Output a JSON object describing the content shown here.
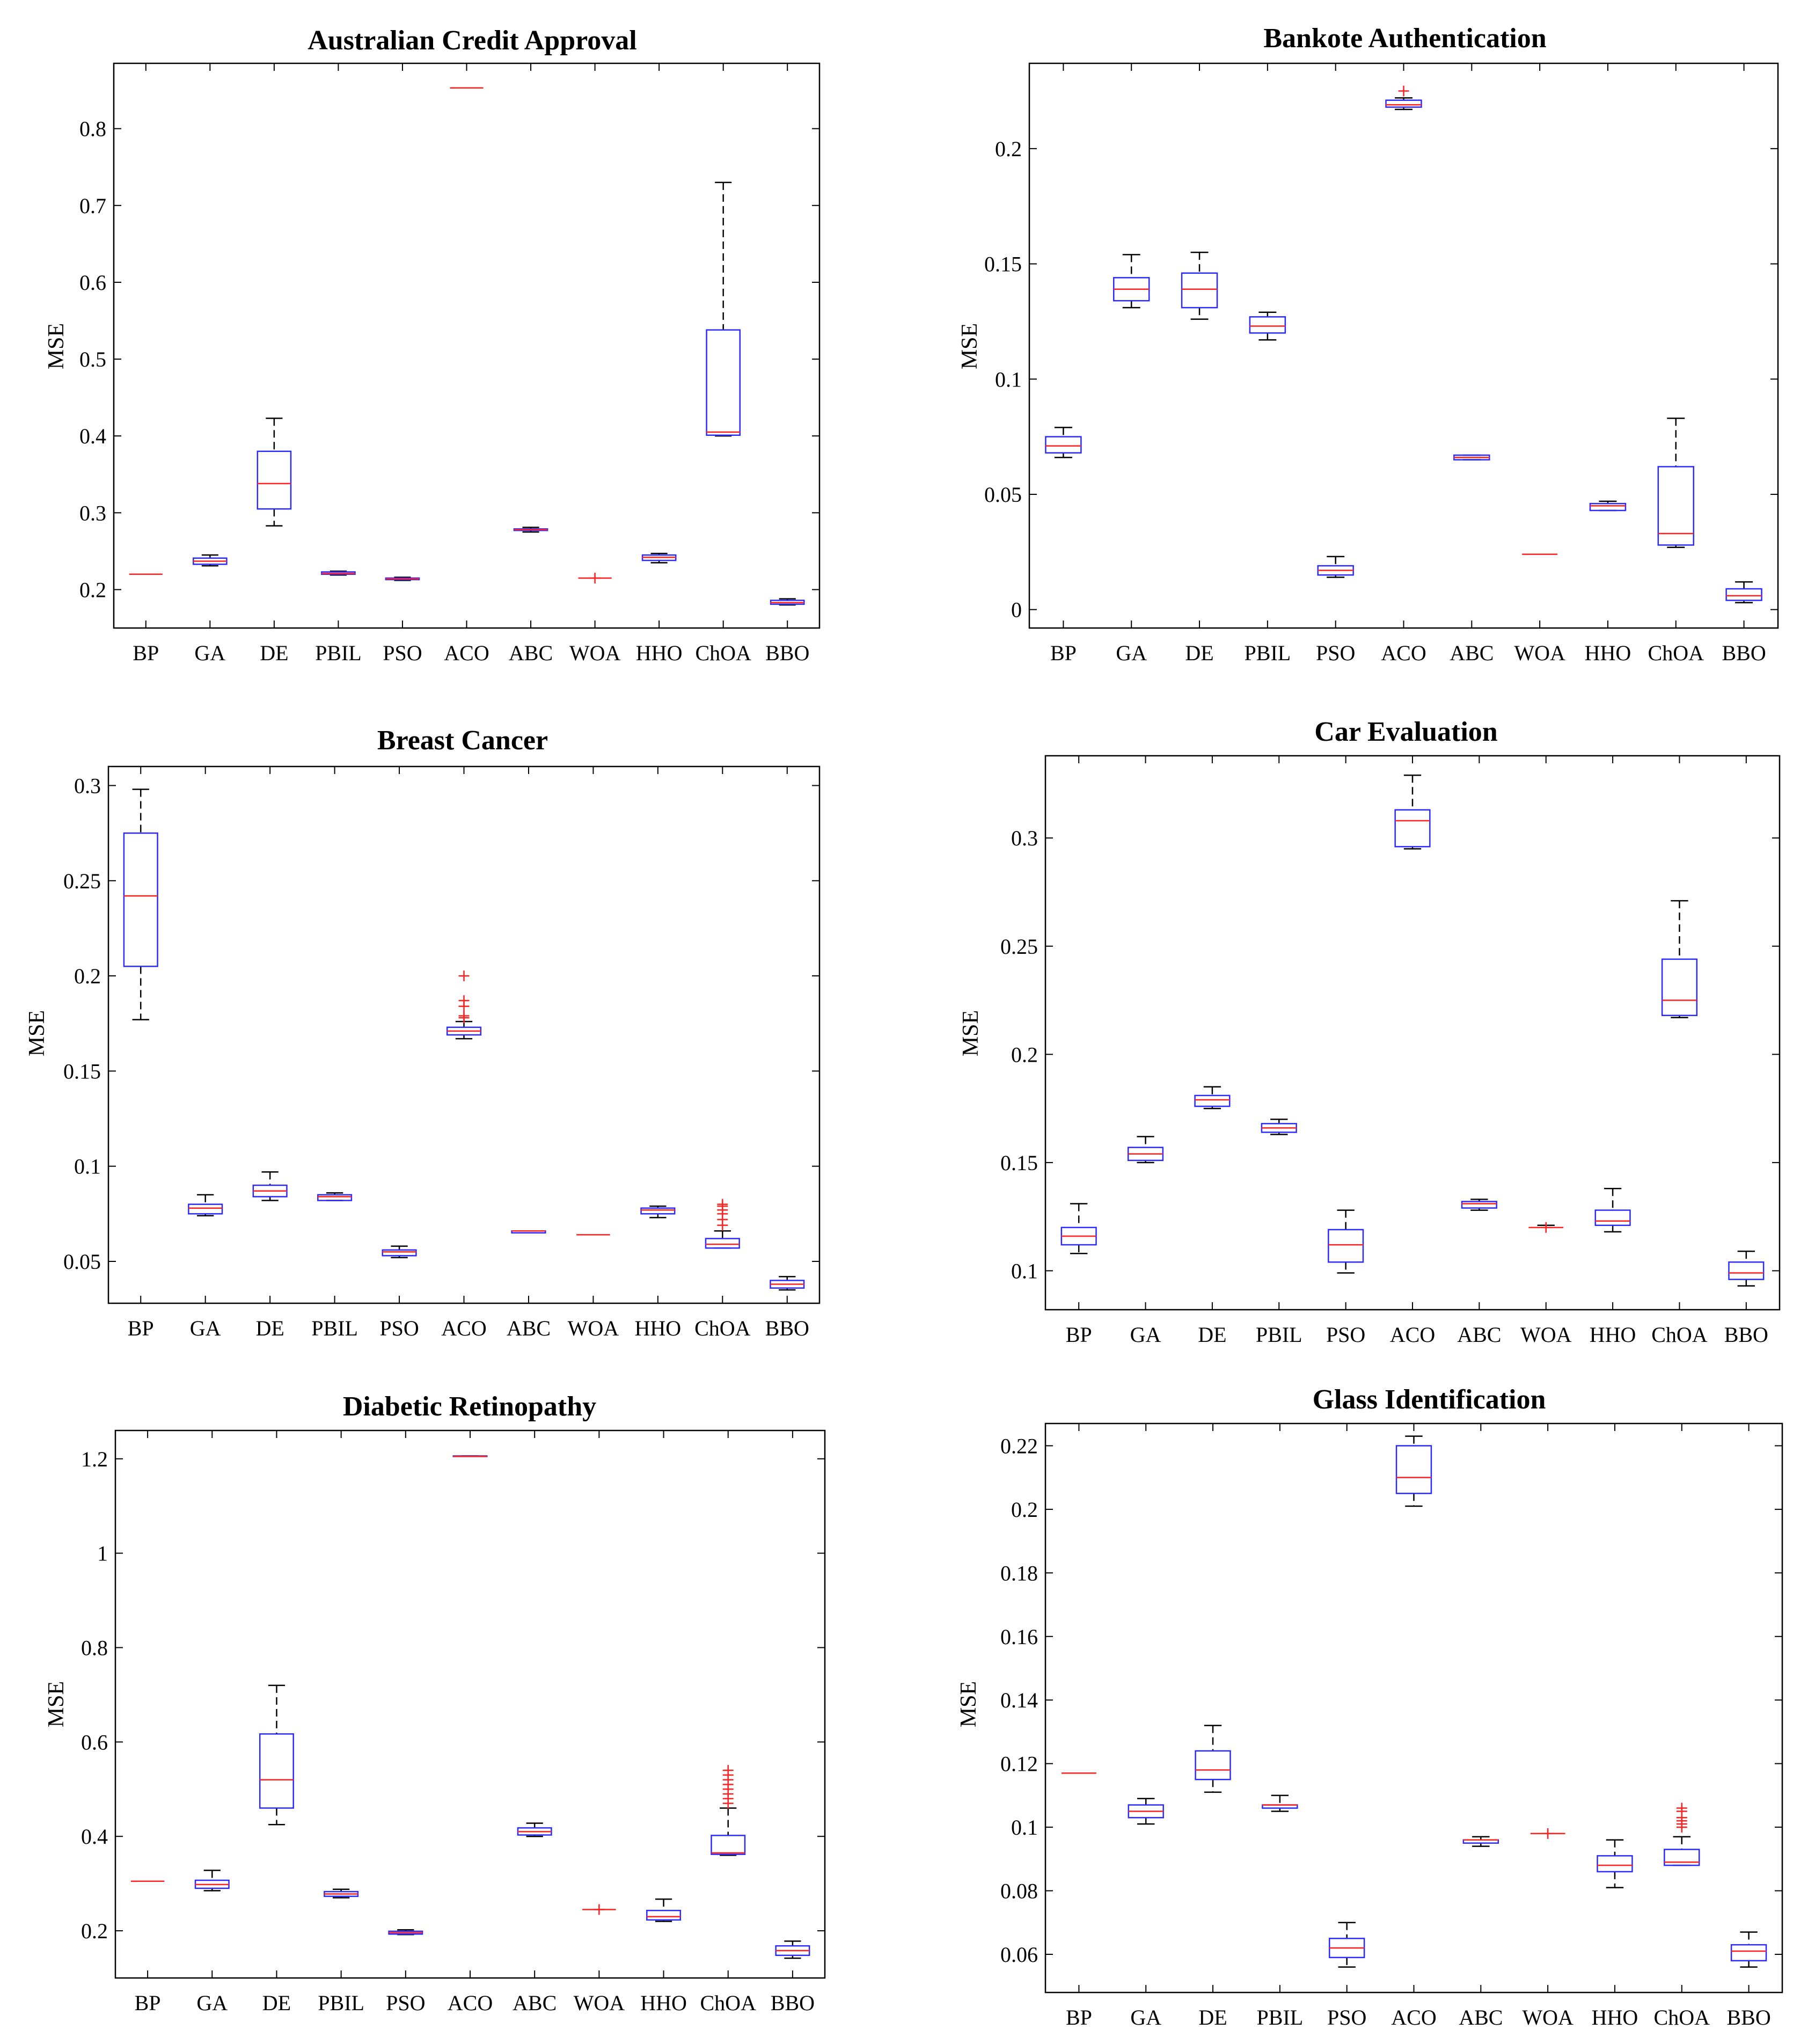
{
  "chart_data": [
    {
      "type": "boxplot",
      "title": "Australian Credit Approval",
      "ylabel": "MSE",
      "categories": [
        "BP",
        "GA",
        "DE",
        "PBIL",
        "PSO",
        "ACO",
        "ABC",
        "WOA",
        "HHO",
        "ChOA",
        "BBO"
      ],
      "ylim": [
        0.15,
        0.885
      ],
      "yticks": [
        0.2,
        0.3,
        0.4,
        0.5,
        0.6,
        0.7,
        0.8
      ],
      "ytick_labels": [
        "0.2",
        "0.3",
        "0.4",
        "0.5",
        "0.6",
        "0.7",
        "0.8"
      ],
      "boxes": [
        {
          "min": 0.22,
          "q1": 0.22,
          "median": 0.22,
          "q3": 0.22,
          "max": 0.22,
          "outliers": []
        },
        {
          "min": 0.231,
          "q1": 0.233,
          "median": 0.237,
          "q3": 0.241,
          "max": 0.245,
          "outliers": []
        },
        {
          "min": 0.283,
          "q1": 0.305,
          "median": 0.338,
          "q3": 0.38,
          "max": 0.423,
          "outliers": []
        },
        {
          "min": 0.219,
          "q1": 0.22,
          "median": 0.221,
          "q3": 0.223,
          "max": 0.224,
          "outliers": []
        },
        {
          "min": 0.212,
          "q1": 0.213,
          "median": 0.214,
          "q3": 0.215,
          "max": 0.216,
          "outliers": []
        },
        {
          "min": 0.853,
          "q1": 0.853,
          "median": 0.853,
          "q3": 0.853,
          "max": 0.853,
          "outliers": []
        },
        {
          "min": 0.275,
          "q1": 0.277,
          "median": 0.278,
          "q3": 0.279,
          "max": 0.281,
          "outliers": []
        },
        {
          "min": 0.215,
          "q1": 0.215,
          "median": 0.215,
          "q3": 0.215,
          "max": 0.215,
          "outliers": [
            0.215
          ]
        },
        {
          "min": 0.235,
          "q1": 0.238,
          "median": 0.242,
          "q3": 0.245,
          "max": 0.247,
          "outliers": []
        },
        {
          "min": 0.4,
          "q1": 0.401,
          "median": 0.405,
          "q3": 0.538,
          "max": 0.73,
          "outliers": []
        },
        {
          "min": 0.18,
          "q1": 0.181,
          "median": 0.183,
          "q3": 0.186,
          "max": 0.188,
          "outliers": []
        }
      ]
    },
    {
      "type": "boxplot",
      "title": "Bankote Authentication",
      "ylabel": "MSE",
      "categories": [
        "BP",
        "GA",
        "DE",
        "PBIL",
        "PSO",
        "ACO",
        "ABC",
        "WOA",
        "HHO",
        "ChOA",
        "BBO"
      ],
      "ylim": [
        -0.008,
        0.237
      ],
      "yticks": [
        0,
        0.05,
        0.1,
        0.15,
        0.2
      ],
      "ytick_labels": [
        "0",
        "0.05",
        "0.1",
        "0.15",
        "0.2"
      ],
      "boxes": [
        {
          "min": 0.066,
          "q1": 0.068,
          "median": 0.071,
          "q3": 0.075,
          "max": 0.079,
          "outliers": []
        },
        {
          "min": 0.131,
          "q1": 0.134,
          "median": 0.139,
          "q3": 0.144,
          "max": 0.154,
          "outliers": []
        },
        {
          "min": 0.126,
          "q1": 0.131,
          "median": 0.139,
          "q3": 0.146,
          "max": 0.155,
          "outliers": []
        },
        {
          "min": 0.117,
          "q1": 0.12,
          "median": 0.123,
          "q3": 0.127,
          "max": 0.129,
          "outliers": []
        },
        {
          "min": 0.014,
          "q1": 0.015,
          "median": 0.017,
          "q3": 0.019,
          "max": 0.023,
          "outliers": []
        },
        {
          "min": 0.217,
          "q1": 0.218,
          "median": 0.219,
          "q3": 0.221,
          "max": 0.222,
          "outliers": [
            0.225
          ]
        },
        {
          "min": 0.065,
          "q1": 0.065,
          "median": 0.066,
          "q3": 0.067,
          "max": 0.067,
          "outliers": []
        },
        {
          "min": 0.024,
          "q1": 0.024,
          "median": 0.024,
          "q3": 0.024,
          "max": 0.024,
          "outliers": []
        },
        {
          "min": 0.043,
          "q1": 0.043,
          "median": 0.045,
          "q3": 0.046,
          "max": 0.047,
          "outliers": []
        },
        {
          "min": 0.027,
          "q1": 0.028,
          "median": 0.033,
          "q3": 0.062,
          "max": 0.083,
          "outliers": []
        },
        {
          "min": 0.003,
          "q1": 0.004,
          "median": 0.006,
          "q3": 0.009,
          "max": 0.012,
          "outliers": []
        }
      ]
    },
    {
      "type": "boxplot",
      "title": "Breast Cancer",
      "ylabel": "MSE",
      "categories": [
        "BP",
        "GA",
        "DE",
        "PBIL",
        "PSO",
        "ACO",
        "ABC",
        "WOA",
        "HHO",
        "ChOA",
        "BBO"
      ],
      "ylim": [
        0.028,
        0.31
      ],
      "yticks": [
        0.05,
        0.1,
        0.15,
        0.2,
        0.25,
        0.3
      ],
      "ytick_labels": [
        "0.05",
        "0.1",
        "0.15",
        "0.2",
        "0.25",
        "0.3"
      ],
      "boxes": [
        {
          "min": 0.177,
          "q1": 0.205,
          "median": 0.242,
          "q3": 0.275,
          "max": 0.298,
          "outliers": []
        },
        {
          "min": 0.074,
          "q1": 0.075,
          "median": 0.078,
          "q3": 0.08,
          "max": 0.085,
          "outliers": []
        },
        {
          "min": 0.082,
          "q1": 0.084,
          "median": 0.087,
          "q3": 0.09,
          "max": 0.097,
          "outliers": []
        },
        {
          "min": 0.082,
          "q1": 0.082,
          "median": 0.084,
          "q3": 0.085,
          "max": 0.086,
          "outliers": []
        },
        {
          "min": 0.052,
          "q1": 0.053,
          "median": 0.055,
          "q3": 0.056,
          "max": 0.058,
          "outliers": []
        },
        {
          "min": 0.167,
          "q1": 0.169,
          "median": 0.171,
          "q3": 0.173,
          "max": 0.176,
          "outliers": [
            0.178,
            0.179,
            0.184,
            0.187,
            0.2
          ]
        },
        {
          "min": 0.065,
          "q1": 0.065,
          "median": 0.066,
          "q3": 0.066,
          "max": 0.066,
          "outliers": []
        },
        {
          "min": 0.064,
          "q1": 0.064,
          "median": 0.064,
          "q3": 0.064,
          "max": 0.064,
          "outliers": []
        },
        {
          "min": 0.073,
          "q1": 0.075,
          "median": 0.077,
          "q3": 0.078,
          "max": 0.079,
          "outliers": []
        },
        {
          "min": 0.057,
          "q1": 0.057,
          "median": 0.059,
          "q3": 0.062,
          "max": 0.066,
          "outliers": [
            0.069,
            0.072,
            0.075,
            0.077,
            0.079,
            0.08
          ]
        },
        {
          "min": 0.035,
          "q1": 0.036,
          "median": 0.038,
          "q3": 0.04,
          "max": 0.042,
          "outliers": []
        }
      ]
    },
    {
      "type": "boxplot",
      "title": "Car Evaluation",
      "ylabel": "MSE",
      "categories": [
        "BP",
        "GA",
        "DE",
        "PBIL",
        "PSO",
        "ACO",
        "ABC",
        "WOA",
        "HHO",
        "ChOA",
        "BBO"
      ],
      "ylim": [
        0.082,
        0.338
      ],
      "yticks": [
        0.1,
        0.15,
        0.2,
        0.25,
        0.3
      ],
      "ytick_labels": [
        "0.1",
        "0.15",
        "0.2",
        "0.25",
        "0.3"
      ],
      "boxes": [
        {
          "min": 0.108,
          "q1": 0.112,
          "median": 0.116,
          "q3": 0.12,
          "max": 0.131,
          "outliers": []
        },
        {
          "min": 0.15,
          "q1": 0.151,
          "median": 0.154,
          "q3": 0.157,
          "max": 0.162,
          "outliers": []
        },
        {
          "min": 0.175,
          "q1": 0.176,
          "median": 0.179,
          "q3": 0.181,
          "max": 0.185,
          "outliers": []
        },
        {
          "min": 0.163,
          "q1": 0.164,
          "median": 0.166,
          "q3": 0.168,
          "max": 0.17,
          "outliers": []
        },
        {
          "min": 0.099,
          "q1": 0.104,
          "median": 0.112,
          "q3": 0.119,
          "max": 0.128,
          "outliers": []
        },
        {
          "min": 0.295,
          "q1": 0.296,
          "median": 0.308,
          "q3": 0.313,
          "max": 0.329,
          "outliers": []
        },
        {
          "min": 0.128,
          "q1": 0.129,
          "median": 0.131,
          "q3": 0.132,
          "max": 0.133,
          "outliers": []
        },
        {
          "min": 0.12,
          "q1": 0.12,
          "median": 0.12,
          "q3": 0.12,
          "max": 0.121,
          "outliers": [
            0.12
          ]
        },
        {
          "min": 0.118,
          "q1": 0.121,
          "median": 0.123,
          "q3": 0.128,
          "max": 0.138,
          "outliers": []
        },
        {
          "min": 0.217,
          "q1": 0.218,
          "median": 0.225,
          "q3": 0.244,
          "max": 0.271,
          "outliers": []
        },
        {
          "min": 0.093,
          "q1": 0.096,
          "median": 0.099,
          "q3": 0.104,
          "max": 0.109,
          "outliers": []
        }
      ]
    },
    {
      "type": "boxplot",
      "title": "Diabetic Retinopathy",
      "ylabel": "MSE",
      "categories": [
        "BP",
        "GA",
        "DE",
        "PBIL",
        "PSO",
        "ACO",
        "ABC",
        "WOA",
        "HHO",
        "ChOA",
        "BBO"
      ],
      "ylim": [
        0.1,
        1.26
      ],
      "yticks": [
        0.2,
        0.4,
        0.6,
        0.8,
        1.0,
        1.2
      ],
      "ytick_labels": [
        "0.2",
        "0.4",
        "0.6",
        "0.8",
        "1",
        "1.2"
      ],
      "boxes": [
        {
          "min": 0.305,
          "q1": 0.305,
          "median": 0.305,
          "q3": 0.305,
          "max": 0.305,
          "outliers": []
        },
        {
          "min": 0.285,
          "q1": 0.29,
          "median": 0.298,
          "q3": 0.307,
          "max": 0.328,
          "outliers": []
        },
        {
          "min": 0.425,
          "q1": 0.46,
          "median": 0.52,
          "q3": 0.617,
          "max": 0.72,
          "outliers": []
        },
        {
          "min": 0.27,
          "q1": 0.273,
          "median": 0.278,
          "q3": 0.283,
          "max": 0.288,
          "outliers": []
        },
        {
          "min": 0.192,
          "q1": 0.193,
          "median": 0.196,
          "q3": 0.199,
          "max": 0.202,
          "outliers": []
        },
        {
          "min": 1.205,
          "q1": 1.205,
          "median": 1.205,
          "q3": 1.206,
          "max": 1.206,
          "outliers": []
        },
        {
          "min": 0.4,
          "q1": 0.403,
          "median": 0.41,
          "q3": 0.418,
          "max": 0.428,
          "outliers": []
        },
        {
          "min": 0.245,
          "q1": 0.245,
          "median": 0.245,
          "q3": 0.245,
          "max": 0.245,
          "outliers": [
            0.245
          ]
        },
        {
          "min": 0.22,
          "q1": 0.223,
          "median": 0.23,
          "q3": 0.243,
          "max": 0.267,
          "outliers": []
        },
        {
          "min": 0.36,
          "q1": 0.362,
          "median": 0.365,
          "q3": 0.402,
          "max": 0.46,
          "outliers": [
            0.47,
            0.48,
            0.49,
            0.5,
            0.51,
            0.52,
            0.53,
            0.54
          ]
        },
        {
          "min": 0.142,
          "q1": 0.148,
          "median": 0.158,
          "q3": 0.168,
          "max": 0.178,
          "outliers": []
        }
      ]
    },
    {
      "type": "boxplot",
      "title": "Glass Identification",
      "ylabel": "MSE",
      "categories": [
        "BP",
        "GA",
        "DE",
        "PBIL",
        "PSO",
        "ACO",
        "ABC",
        "WOA",
        "HHO",
        "ChOA",
        "BBO"
      ],
      "ylim": [
        0.048,
        0.227
      ],
      "yticks": [
        0.06,
        0.08,
        0.1,
        0.12,
        0.14,
        0.16,
        0.18,
        0.2,
        0.22
      ],
      "ytick_labels": [
        "0.06",
        "0.08",
        "0.1",
        "0.12",
        "0.14",
        "0.16",
        "0.18",
        "0.2",
        "0.22"
      ],
      "boxes": [
        {
          "min": 0.117,
          "q1": 0.117,
          "median": 0.117,
          "q3": 0.117,
          "max": 0.117,
          "outliers": []
        },
        {
          "min": 0.101,
          "q1": 0.103,
          "median": 0.105,
          "q3": 0.107,
          "max": 0.109,
          "outliers": []
        },
        {
          "min": 0.111,
          "q1": 0.115,
          "median": 0.118,
          "q3": 0.124,
          "max": 0.132,
          "outliers": []
        },
        {
          "min": 0.105,
          "q1": 0.106,
          "median": 0.107,
          "q3": 0.107,
          "max": 0.11,
          "outliers": []
        },
        {
          "min": 0.056,
          "q1": 0.059,
          "median": 0.062,
          "q3": 0.065,
          "max": 0.07,
          "outliers": []
        },
        {
          "min": 0.201,
          "q1": 0.205,
          "median": 0.21,
          "q3": 0.22,
          "max": 0.223,
          "outliers": []
        },
        {
          "min": 0.094,
          "q1": 0.095,
          "median": 0.096,
          "q3": 0.096,
          "max": 0.097,
          "outliers": []
        },
        {
          "min": 0.098,
          "q1": 0.098,
          "median": 0.098,
          "q3": 0.098,
          "max": 0.098,
          "outliers": [
            0.098
          ]
        },
        {
          "min": 0.081,
          "q1": 0.086,
          "median": 0.088,
          "q3": 0.091,
          "max": 0.096,
          "outliers": []
        },
        {
          "min": 0.088,
          "q1": 0.088,
          "median": 0.089,
          "q3": 0.093,
          "max": 0.097,
          "outliers": [
            0.1,
            0.101,
            0.102,
            0.103,
            0.105,
            0.106
          ]
        },
        {
          "min": 0.056,
          "q1": 0.058,
          "median": 0.061,
          "q3": 0.063,
          "max": 0.067,
          "outliers": []
        }
      ]
    }
  ]
}
